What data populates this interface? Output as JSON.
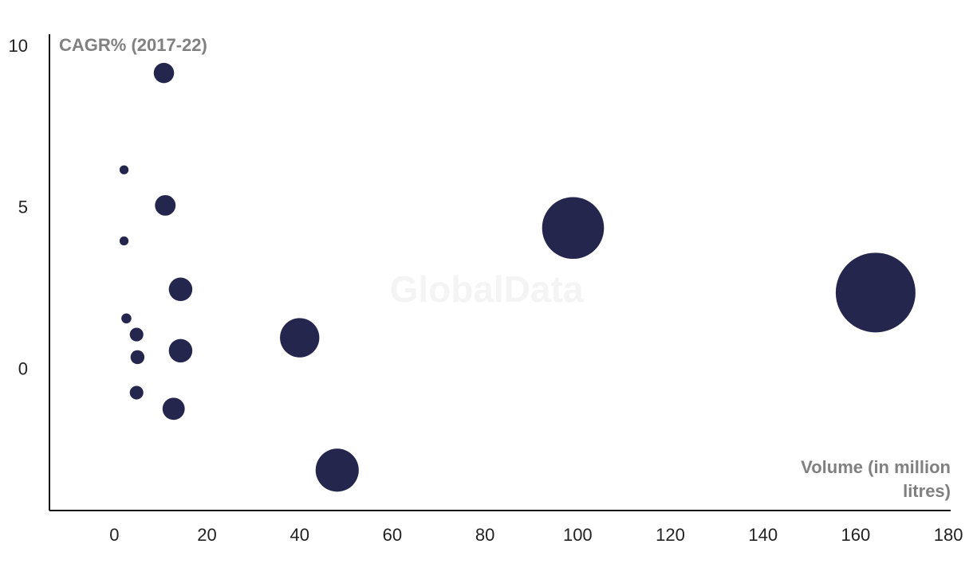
{
  "chart_data": {
    "type": "scatter",
    "y_label": "CAGR% (2017-22)",
    "x_label": "Volume (in million litres)",
    "watermark": "GlobalData",
    "color": "#25264d",
    "x": [
      10.7,
      2.1,
      11,
      2.1,
      14.3,
      2.6,
      4.8,
      14.3,
      5.0,
      4.8,
      12.8,
      40,
      48.1,
      99,
      164.3
    ],
    "values": [
      9.2,
      6.2,
      5.1,
      4.0,
      2.5,
      1.6,
      1.1,
      0.6,
      0.4,
      -0.7,
      -1.2,
      1.0,
      -3.1,
      4.4,
      2.4
    ],
    "xlim": [
      -14,
      180.5
    ],
    "ylim": [
      -4.35,
      10.4
    ],
    "xticks": [
      0,
      20,
      40,
      60,
      80,
      100,
      120,
      140,
      160,
      180
    ],
    "yticks": [
      0,
      5,
      10
    ],
    "grid": false
  }
}
